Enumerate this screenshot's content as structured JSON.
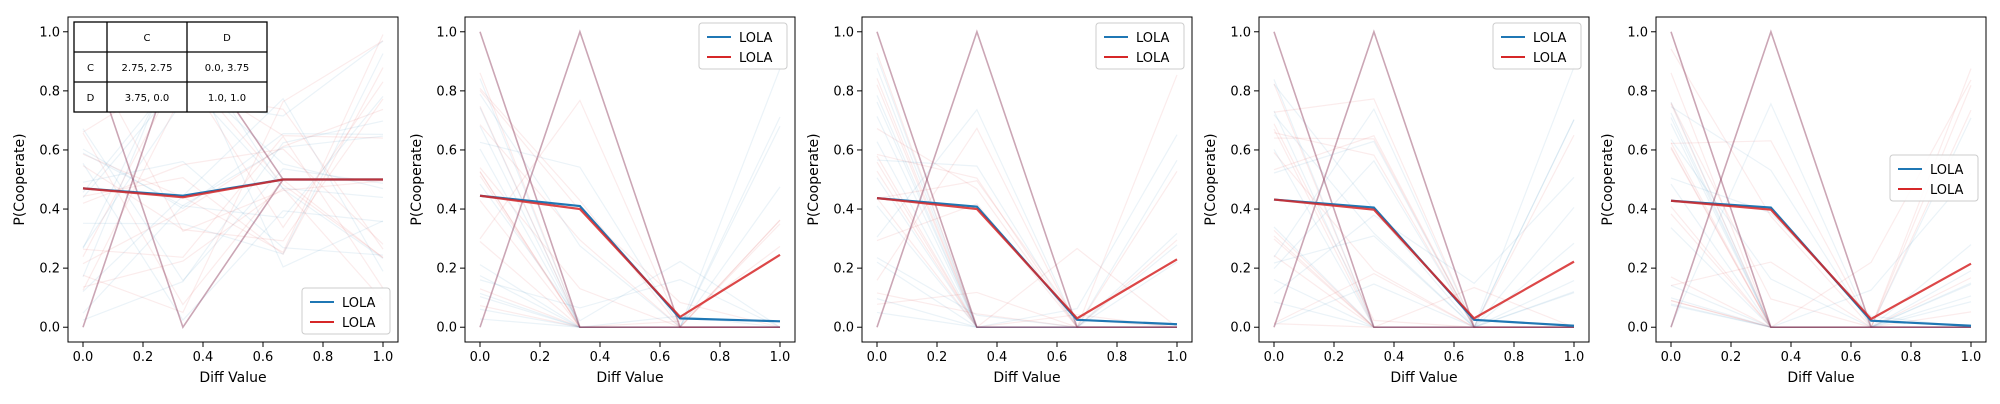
{
  "chart_data": [
    {
      "type": "line",
      "xlabel": "Diff Value",
      "ylabel": "P(Cooperate)",
      "xlim": [
        -0.05,
        1.05
      ],
      "ylim": [
        -0.05,
        1.05
      ],
      "xticks": [
        "0.0",
        "0.2",
        "0.4",
        "0.6",
        "0.8",
        "1.0"
      ],
      "yticks": [
        "0.0",
        "0.2",
        "0.4",
        "0.6",
        "0.8",
        "1.0"
      ],
      "grid": false,
      "legend_position": "lower-right",
      "x": [
        0,
        0.333,
        0.667,
        1.0
      ],
      "series": [
        {
          "name": "LOLA",
          "color": "#1f77b4",
          "values": [
            0.47,
            0.445,
            0.5,
            0.5
          ]
        },
        {
          "name": "LOLA",
          "color": "#d62728",
          "values": [
            0.47,
            0.44,
            0.5,
            0.5
          ]
        }
      ],
      "payoff_table": {
        "col_headers": [
          "C",
          "D"
        ],
        "rows": [
          {
            "label": "C",
            "cells": [
              "2.75, 2.75",
              "0.0, 3.75"
            ]
          },
          {
            "label": "D",
            "cells": [
              "3.75, 0.0",
              "1.0, 1.0"
            ]
          }
        ]
      }
    },
    {
      "type": "line",
      "xlabel": "Diff Value",
      "ylabel": "P(Cooperate)",
      "xlim": [
        -0.05,
        1.05
      ],
      "ylim": [
        -0.05,
        1.05
      ],
      "xticks": [
        "0.0",
        "0.2",
        "0.4",
        "0.6",
        "0.8",
        "1.0"
      ],
      "yticks": [
        "0.0",
        "0.2",
        "0.4",
        "0.6",
        "0.8",
        "1.0"
      ],
      "grid": false,
      "legend_position": "upper-right",
      "x": [
        0,
        0.333,
        0.667,
        1.0
      ],
      "series": [
        {
          "name": "LOLA",
          "color": "#1f77b4",
          "values": [
            0.445,
            0.41,
            0.03,
            0.02
          ]
        },
        {
          "name": "LOLA",
          "color": "#d62728",
          "values": [
            0.445,
            0.4,
            0.035,
            0.245
          ]
        }
      ]
    },
    {
      "type": "line",
      "xlabel": "Diff Value",
      "ylabel": "P(Cooperate)",
      "xlim": [
        -0.05,
        1.05
      ],
      "ylim": [
        -0.05,
        1.05
      ],
      "xticks": [
        "0.0",
        "0.2",
        "0.4",
        "0.6",
        "0.8",
        "1.0"
      ],
      "yticks": [
        "0.0",
        "0.2",
        "0.4",
        "0.6",
        "0.8",
        "1.0"
      ],
      "grid": false,
      "legend_position": "upper-right",
      "x": [
        0,
        0.333,
        0.667,
        1.0
      ],
      "series": [
        {
          "name": "LOLA",
          "color": "#1f77b4",
          "values": [
            0.437,
            0.408,
            0.025,
            0.01
          ]
        },
        {
          "name": "LOLA",
          "color": "#d62728",
          "values": [
            0.437,
            0.4,
            0.03,
            0.23
          ]
        }
      ]
    },
    {
      "type": "line",
      "xlabel": "Diff Value",
      "ylabel": "P(Cooperate)",
      "xlim": [
        -0.05,
        1.05
      ],
      "ylim": [
        -0.05,
        1.05
      ],
      "xticks": [
        "0.0",
        "0.2",
        "0.4",
        "0.6",
        "0.8",
        "1.0"
      ],
      "yticks": [
        "0.0",
        "0.2",
        "0.4",
        "0.6",
        "0.8",
        "1.0"
      ],
      "grid": false,
      "legend_position": "upper-right",
      "x": [
        0,
        0.333,
        0.667,
        1.0
      ],
      "series": [
        {
          "name": "LOLA",
          "color": "#1f77b4",
          "values": [
            0.432,
            0.405,
            0.025,
            0.005
          ]
        },
        {
          "name": "LOLA",
          "color": "#d62728",
          "values": [
            0.432,
            0.398,
            0.03,
            0.222
          ]
        }
      ]
    },
    {
      "type": "line",
      "xlabel": "Diff Value",
      "ylabel": "P(Cooperate)",
      "xlim": [
        -0.05,
        1.05
      ],
      "ylim": [
        -0.05,
        1.05
      ],
      "xticks": [
        "0.0",
        "0.2",
        "0.4",
        "0.6",
        "0.8",
        "1.0"
      ],
      "yticks": [
        "0.0",
        "0.2",
        "0.4",
        "0.6",
        "0.8",
        "1.0"
      ],
      "grid": false,
      "legend_position": "center-right",
      "x": [
        0,
        0.333,
        0.667,
        1.0
      ],
      "series": [
        {
          "name": "LOLA",
          "color": "#1f77b4",
          "values": [
            0.428,
            0.405,
            0.022,
            0.005
          ]
        },
        {
          "name": "LOLA",
          "color": "#d62728",
          "values": [
            0.428,
            0.398,
            0.028,
            0.215
          ]
        }
      ]
    }
  ]
}
